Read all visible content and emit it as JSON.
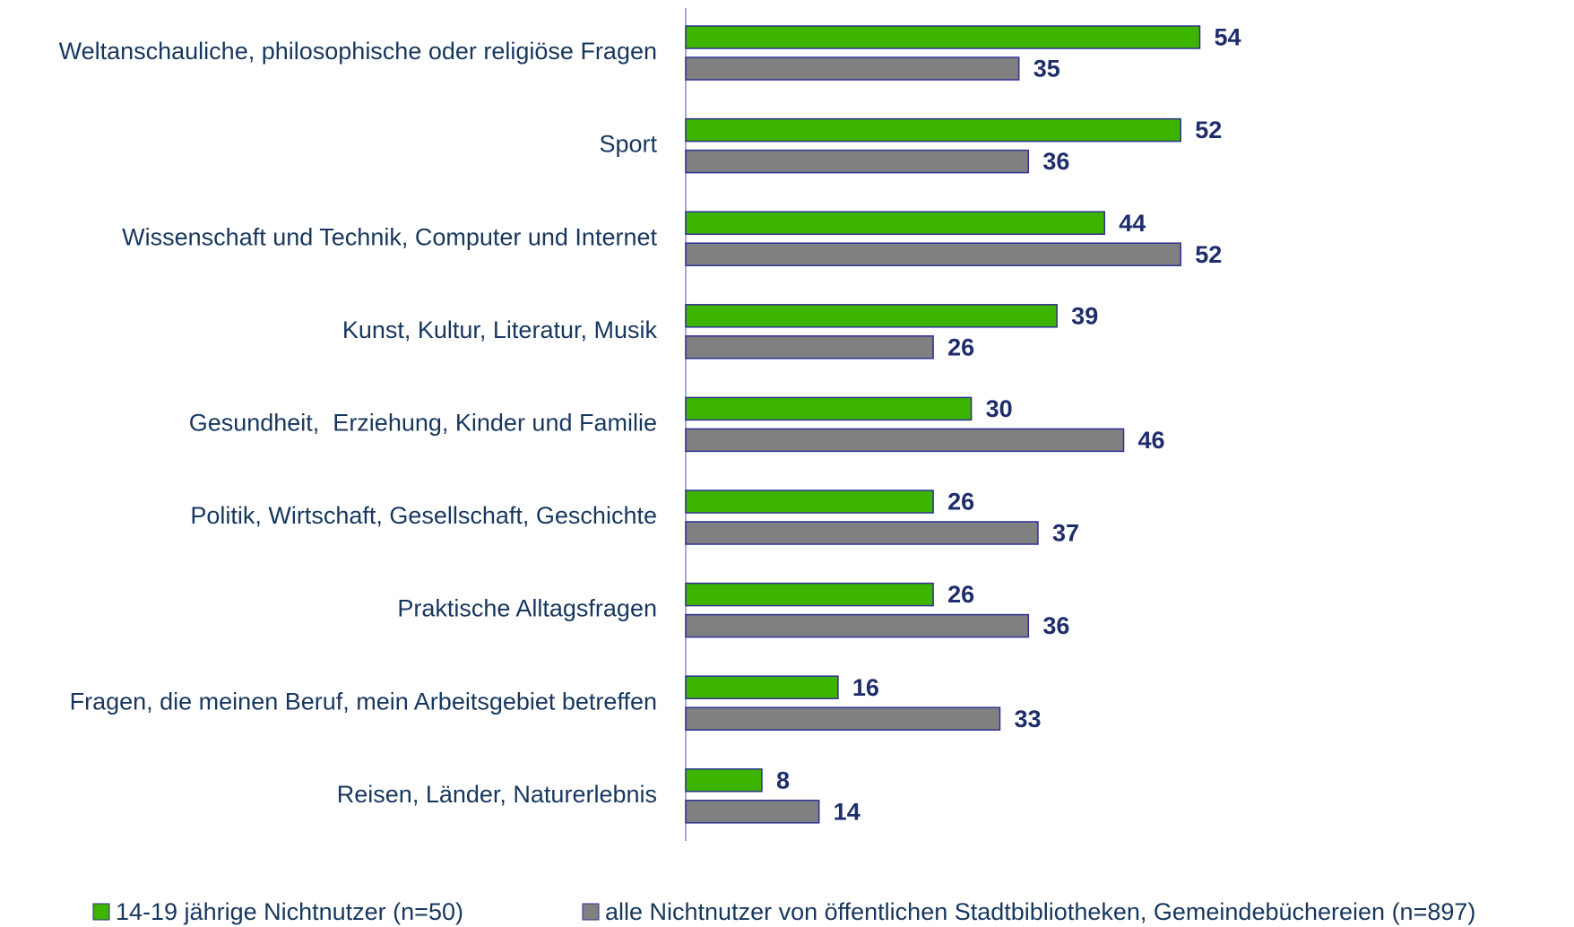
{
  "chart_data": {
    "type": "bar",
    "orientation": "horizontal",
    "categories": [
      "Weltanschauliche, philosophische oder religiöse Fragen",
      "Sport",
      "Wissenschaft und Technik, Computer und Internet",
      "Kunst, Kultur, Literatur, Musik",
      "Gesundheit,  Erziehung, Kinder und Familie",
      "Politik, Wirtschaft, Gesellschaft, Geschichte",
      "Praktische Alltagsfragen",
      "Fragen, die meinen Beruf, mein Arbeitsgebiet betreffen",
      "Reisen, Länder, Naturerlebnis"
    ],
    "series": [
      {
        "name": "14-19 jährige Nichtnutzer (n=50)",
        "color": "#3cb400",
        "values": [
          54,
          52,
          44,
          39,
          30,
          26,
          26,
          16,
          8
        ]
      },
      {
        "name": "alle Nichtnutzer von öffentlichen Stadtbibliotheken, Gemeindebüchereien (n=897)",
        "color": "#808080",
        "values": [
          35,
          36,
          52,
          26,
          46,
          37,
          36,
          33,
          14
        ]
      }
    ],
    "legend": "bottom"
  }
}
